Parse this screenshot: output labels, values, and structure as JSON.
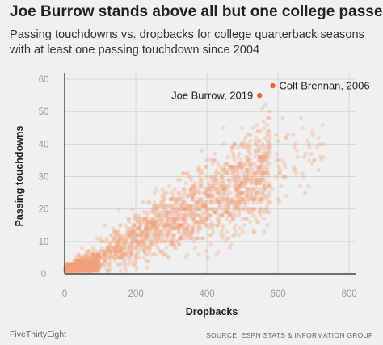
{
  "header": {
    "title": "Joe Burrow stands above all but one college passer",
    "subtitle": "Passing touchdowns vs. dropbacks for college quarterback seasons with at least one passing touchdown since 2004"
  },
  "footer": {
    "brand": "FiveThirtyEight",
    "source": "SOURCE: ESPN STATS & INFORMATION GROUP"
  },
  "colors": {
    "accent": "#e8682a",
    "point": "#f2a17a",
    "grid": "#d6d6d6",
    "axis": "#222222",
    "background": "#f0f0f0"
  },
  "chart_data": {
    "type": "scatter",
    "title": "Joe Burrow stands above all but one college passer",
    "subtitle": "Passing touchdowns vs. dropbacks for college quarterback seasons with at least one passing touchdown since 2004",
    "xlabel": "Dropbacks",
    "ylabel": "Passing touchdowns",
    "xlim": [
      0,
      820
    ],
    "ylim": [
      0,
      62
    ],
    "xticks": [
      0,
      200,
      400,
      600,
      800
    ],
    "yticks": [
      0,
      10,
      20,
      30,
      40,
      50,
      60
    ],
    "grid": true,
    "background_points": {
      "count": "thousands (approximate distribution)",
      "trend": "touchdowns rise with dropbacks; dense cluster of low-volume seasons near the origin",
      "x_range": [
        0,
        740
      ],
      "y_range": [
        0,
        52
      ]
    },
    "highlighted": [
      {
        "label": "Colt Brennan, 2006",
        "x": 585,
        "y": 58
      },
      {
        "label": "Joe Burrow, 2019",
        "x": 548,
        "y": 55
      }
    ]
  }
}
